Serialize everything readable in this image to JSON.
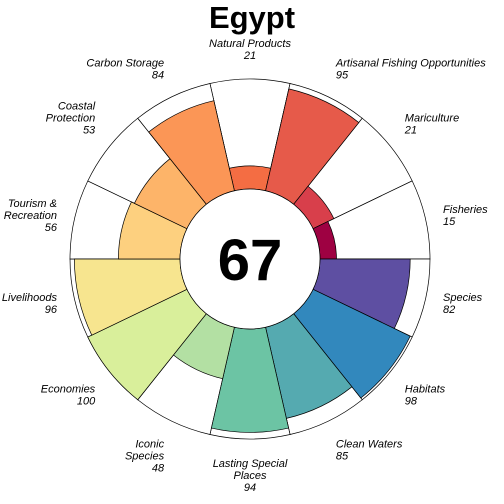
{
  "chart_data": {
    "type": "polar-bar",
    "title": "Egypt",
    "center_score": "67",
    "max_value": 100,
    "goals": [
      {
        "name": "Natural Products",
        "label_lines": [
          "Natural Products"
        ],
        "value": 21,
        "color": "#f46d43"
      },
      {
        "name": "Artisanal Fishing Opportunities",
        "label_lines": [
          "Artisanal Fishing Opportunities"
        ],
        "value": 95,
        "color": "#e65a4a"
      },
      {
        "name": "Mariculture",
        "label_lines": [
          "Mariculture"
        ],
        "value": 21,
        "color": "#d83f4b"
      },
      {
        "name": "Fisheries",
        "label_lines": [
          "Fisheries"
        ],
        "value": 15,
        "color": "#9e0142"
      },
      {
        "name": "Species",
        "label_lines": [
          "Species"
        ],
        "value": 82,
        "color": "#5e4fa2"
      },
      {
        "name": "Habitats",
        "label_lines": [
          "Habitats"
        ],
        "value": 98,
        "color": "#3288bd"
      },
      {
        "name": "Clean Waters",
        "label_lines": [
          "Clean Waters"
        ],
        "value": 85,
        "color": "#55aab0"
      },
      {
        "name": "Lasting Special Places",
        "label_lines": [
          "Lasting Special",
          "Places"
        ],
        "value": 94,
        "color": "#6cc4a4"
      },
      {
        "name": "Iconic Species",
        "label_lines": [
          "Iconic",
          "Species"
        ],
        "value": 48,
        "color": "#b3e0a3"
      },
      {
        "name": "Economies",
        "label_lines": [
          "Economies"
        ],
        "value": 100,
        "color": "#d9ef9b"
      },
      {
        "name": "Livelihoods",
        "label_lines": [
          "Livelihoods"
        ],
        "value": 96,
        "color": "#f7e58f"
      },
      {
        "name": "Tourism & Recreation",
        "label_lines": [
          "Tourism &",
          "Recreation"
        ],
        "value": 56,
        "color": "#fdd07f"
      },
      {
        "name": "Coastal Protection",
        "label_lines": [
          "Coastal",
          "Protection"
        ],
        "value": 53,
        "color": "#fdb469"
      },
      {
        "name": "Carbon Storage",
        "label_lines": [
          "Carbon Storage"
        ],
        "value": 84,
        "color": "#fb9656"
      }
    ]
  }
}
